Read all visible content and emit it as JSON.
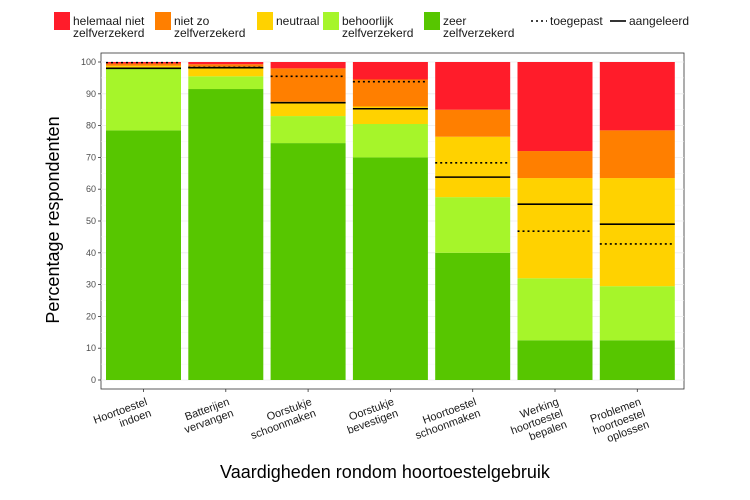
{
  "chart_data": {
    "type": "bar",
    "stacked": true,
    "xlabel": "Vaardigheden rondom hoortoestelgebruik",
    "ylabel": "Percentage respondenten",
    "ylim": [
      0,
      100
    ],
    "yticks": [
      0,
      10,
      20,
      30,
      40,
      50,
      60,
      70,
      80,
      90,
      100
    ],
    "categories": [
      [
        "Hoortoestel",
        "indoen"
      ],
      [
        "Batterijen",
        "vervangen"
      ],
      [
        "Oorstukje",
        "schoonmaken"
      ],
      [
        "Oorstukje",
        "bevestigen"
      ],
      [
        "Hoortoestel",
        "schoonmaken"
      ],
      [
        "Werking",
        "hoortoestel",
        "bepalen"
      ],
      [
        "Problemen",
        "hoortoestel",
        "oplossen"
      ]
    ],
    "series": [
      {
        "name": [
          "zeer",
          "zelfverzekerd"
        ],
        "color": "#57c600",
        "values": [
          78.5,
          91.5,
          74.5,
          70.0,
          40.0,
          12.5,
          12.5
        ]
      },
      {
        "name": [
          "behoorlijk",
          "zelfverzekerd"
        ],
        "color": "#a6f52a",
        "values": [
          19.5,
          4.0,
          8.5,
          10.5,
          17.5,
          19.5,
          17.0
        ]
      },
      {
        "name": [
          "neutraal"
        ],
        "color": "#ffd200",
        "values": [
          0.8,
          3.0,
          4.5,
          5.5,
          19.0,
          31.5,
          34.0
        ]
      },
      {
        "name": [
          "niet zo",
          "zelfverzekerd"
        ],
        "color": "#ff7f00",
        "values": [
          0.7,
          0.8,
          10.5,
          8.5,
          8.5,
          8.5,
          15.0
        ]
      },
      {
        "name": [
          "helemaal niet",
          "zelfverzekerd"
        ],
        "color": "#ff1c2a",
        "values": [
          0.5,
          0.7,
          2.0,
          5.5,
          15.0,
          28.0,
          21.5
        ]
      }
    ],
    "reference_lines": [
      {
        "name": "toegepast",
        "style": "dotted",
        "values": [
          99.8,
          98.3,
          95.5,
          93.8,
          68.3,
          46.8,
          42.8
        ]
      },
      {
        "name": "aangeleerd",
        "style": "solid",
        "values": [
          98.0,
          98.2,
          87.2,
          85.3,
          63.8,
          55.3,
          49.0
        ]
      }
    ],
    "legend_position": "top"
  }
}
